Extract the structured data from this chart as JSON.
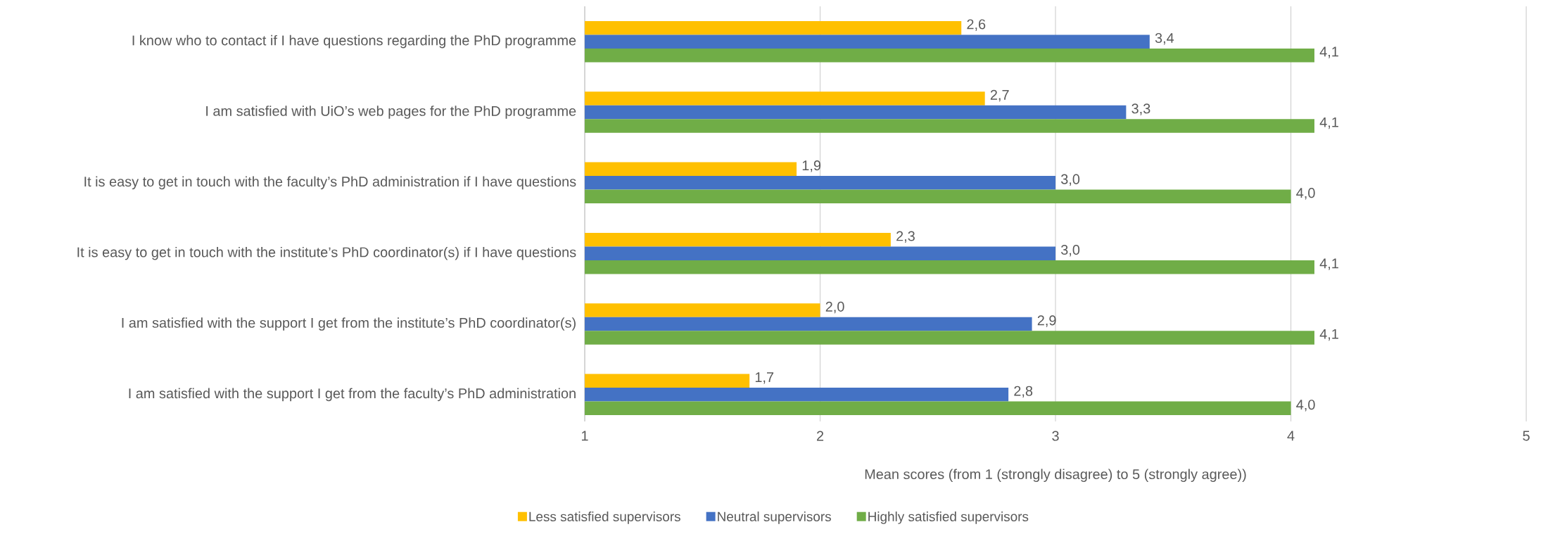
{
  "chart_data": {
    "type": "bar",
    "orientation": "horizontal",
    "categories": [
      "I know who to contact if I have questions regarding the PhD programme",
      "I am satisfied with UiO’s web pages for the PhD programme",
      "It is easy to get in touch with the faculty’s PhD administration if I have questions",
      "It is easy to get in touch with the institute’s PhD coordinator(s) if I have questions",
      "I am satisfied with the support I get from the institute’s PhD coordinator(s)",
      "I am satisfied with the support I get from the faculty’s PhD administration"
    ],
    "series": [
      {
        "name": "Less satisfied supervisors",
        "color": "#ffc000",
        "values": [
          2.6,
          2.7,
          1.9,
          2.3,
          2.0,
          1.7
        ],
        "value_labels": [
          "2,6",
          "2,7",
          "1,9",
          "2,3",
          "2,0",
          "1,7"
        ]
      },
      {
        "name": "Neutral supervisors",
        "color": "#4472c4",
        "values": [
          3.4,
          3.3,
          3.0,
          3.0,
          2.9,
          2.8
        ],
        "value_labels": [
          "3,4",
          "3,3",
          "3,0",
          "3,0",
          "2,9",
          "2,8"
        ]
      },
      {
        "name": "Highly satisfied supervisors",
        "color": "#70ad47",
        "values": [
          4.1,
          4.1,
          4.0,
          4.1,
          4.1,
          4.0
        ],
        "value_labels": [
          "4,1",
          "4,1",
          "4,0",
          "4,1",
          "4,1",
          "4,0"
        ]
      }
    ],
    "xlabel": "Mean scores (from 1 (strongly disagree) to 5 (strongly agree))",
    "xlim": [
      1,
      5
    ],
    "xticks": [
      1,
      2,
      3,
      4,
      5
    ],
    "grid": "x",
    "legend": "bottom"
  }
}
